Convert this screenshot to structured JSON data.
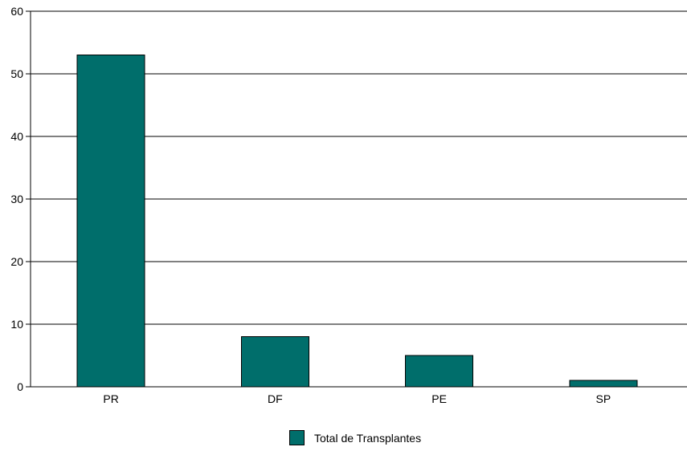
{
  "chart_data": {
    "type": "bar",
    "categories": [
      "PR",
      "DF",
      "PE",
      "SP"
    ],
    "series": [
      {
        "name": "Total de Transplantes",
        "values": [
          53,
          8,
          5,
          1
        ],
        "color": "#006E6B"
      }
    ],
    "ylim": [
      0,
      60
    ],
    "yticks": [
      0,
      10,
      20,
      30,
      40,
      50,
      60
    ],
    "grid": true,
    "legend_position": "bottom-center"
  }
}
